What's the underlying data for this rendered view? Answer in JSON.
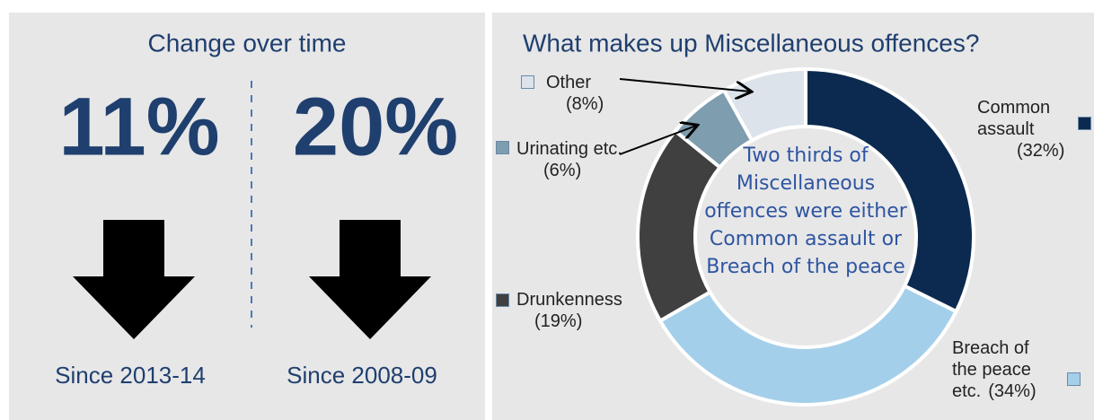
{
  "panel": {
    "title": "Change over time",
    "stats": [
      {
        "value": "11%",
        "label": "Since 2013-14"
      },
      {
        "value": "20%",
        "label": "Since 2008-09"
      }
    ]
  },
  "chart_data": {
    "type": "pie",
    "title": "What makes up Miscellaneous offences?",
    "categories": [
      "Common assault",
      "Breach of the peace etc.",
      "Drunkenness",
      "Urinating etc.",
      "Other"
    ],
    "values": [
      32,
      34,
      19,
      6,
      8
    ],
    "value_labels": [
      "(32%)",
      "(34%)",
      "(19%)",
      "(6%)",
      "(8%)"
    ],
    "colors": [
      "#0c2a4f",
      "#a4cfea",
      "#404040",
      "#7e9dae",
      "#dce3ea"
    ],
    "annotation": "Two thirds of Miscellaneous offences were either Common assault or Breach of the peace"
  }
}
